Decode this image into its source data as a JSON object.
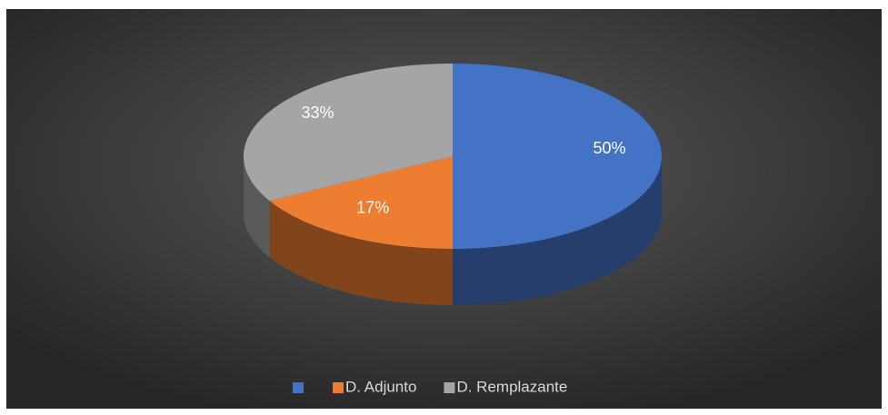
{
  "chart_data": {
    "type": "pie",
    "categories": [
      null,
      "D. Adjunto",
      "D. Remplazante"
    ],
    "values": [
      50,
      17,
      33
    ],
    "value_labels": [
      "50%",
      "17%",
      "33%"
    ],
    "colors": [
      "#4472c4",
      "#ed7d31",
      "#a5a5a5"
    ],
    "legend": "bottom"
  }
}
